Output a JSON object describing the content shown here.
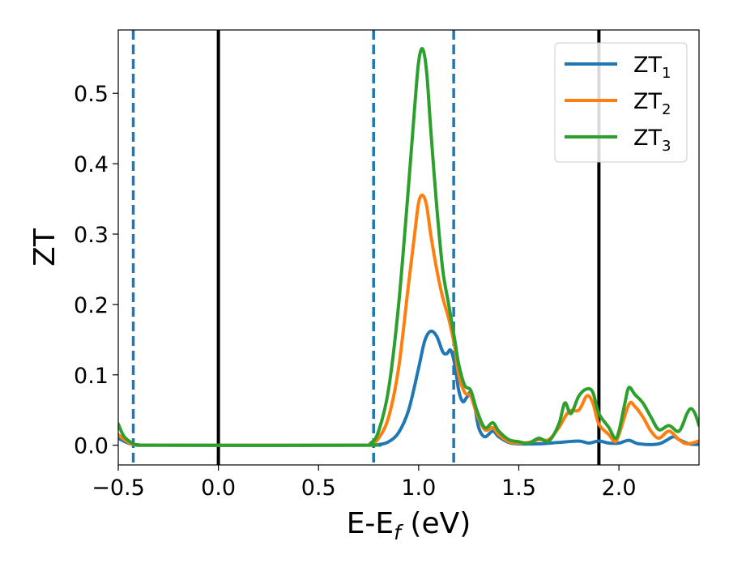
{
  "chart_data": {
    "type": "line",
    "title": "",
    "xlabel": {
      "main": "E-E",
      "sub": "f",
      "suffix": " (eV)"
    },
    "ylabel": "ZT",
    "xlim": [
      -0.5,
      2.4
    ],
    "ylim": [
      -0.028,
      0.59
    ],
    "xticks": [
      -0.5,
      0.0,
      0.5,
      1.0,
      1.5,
      2.0
    ],
    "xtick_labels": [
      "−0.5",
      "0.0",
      "0.5",
      "1.0",
      "1.5",
      "2.0"
    ],
    "yticks": [
      0.0,
      0.1,
      0.2,
      0.3,
      0.4,
      0.5
    ],
    "ytick_labels": [
      "0.0",
      "0.1",
      "0.2",
      "0.3",
      "0.4",
      "0.5"
    ],
    "grid": false,
    "legend_position": "top-right",
    "vlines": [
      {
        "x": 0.0,
        "style": "solid",
        "color": "#000000"
      },
      {
        "x": 1.9,
        "style": "solid",
        "color": "#000000"
      },
      {
        "x": -0.425,
        "style": "dashed",
        "color": "#1f77b4"
      },
      {
        "x": 0.775,
        "style": "dashed",
        "color": "#1f77b4"
      },
      {
        "x": 1.175,
        "style": "dashed",
        "color": "#1f77b4"
      }
    ],
    "series": [
      {
        "name": "ZT",
        "sub": "1",
        "color": "#1f77b4",
        "points": [
          [
            -0.5,
            0.01
          ],
          [
            -0.45,
            0.003
          ],
          [
            -0.4,
            0.0005
          ],
          [
            -0.3,
            0
          ],
          [
            0.7,
            0
          ],
          [
            0.8,
            0.001
          ],
          [
            0.85,
            0.005
          ],
          [
            0.9,
            0.018
          ],
          [
            0.95,
            0.05
          ],
          [
            1.0,
            0.11
          ],
          [
            1.03,
            0.148
          ],
          [
            1.06,
            0.162
          ],
          [
            1.09,
            0.155
          ],
          [
            1.12,
            0.133
          ],
          [
            1.14,
            0.13
          ],
          [
            1.16,
            0.135
          ],
          [
            1.18,
            0.115
          ],
          [
            1.2,
            0.078
          ],
          [
            1.22,
            0.062
          ],
          [
            1.24,
            0.068
          ],
          [
            1.26,
            0.075
          ],
          [
            1.28,
            0.055
          ],
          [
            1.3,
            0.025
          ],
          [
            1.33,
            0.012
          ],
          [
            1.37,
            0.02
          ],
          [
            1.4,
            0.012
          ],
          [
            1.45,
            0.004
          ],
          [
            1.5,
            0.002
          ],
          [
            1.6,
            0.002
          ],
          [
            1.7,
            0.004
          ],
          [
            1.8,
            0.006
          ],
          [
            1.85,
            0.003
          ],
          [
            1.9,
            0.006
          ],
          [
            1.95,
            0.003
          ],
          [
            2.0,
            0.003
          ],
          [
            2.05,
            0.007
          ],
          [
            2.1,
            0.002
          ],
          [
            2.2,
            0.002
          ],
          [
            2.27,
            0.012
          ],
          [
            2.3,
            0.008
          ],
          [
            2.35,
            0.002
          ],
          [
            2.4,
            0.001
          ]
        ]
      },
      {
        "name": "ZT",
        "sub": "2",
        "color": "#ff7f0e",
        "points": [
          [
            -0.5,
            0.015
          ],
          [
            -0.45,
            0.004
          ],
          [
            -0.4,
            0.0005
          ],
          [
            -0.3,
            0
          ],
          [
            0.7,
            0
          ],
          [
            0.76,
            0.002
          ],
          [
            0.8,
            0.01
          ],
          [
            0.85,
            0.04
          ],
          [
            0.9,
            0.11
          ],
          [
            0.95,
            0.23
          ],
          [
            0.98,
            0.3
          ],
          [
            1.0,
            0.345
          ],
          [
            1.02,
            0.355
          ],
          [
            1.04,
            0.34
          ],
          [
            1.06,
            0.3
          ],
          [
            1.09,
            0.25
          ],
          [
            1.12,
            0.21
          ],
          [
            1.15,
            0.18
          ],
          [
            1.18,
            0.14
          ],
          [
            1.2,
            0.1
          ],
          [
            1.23,
            0.075
          ],
          [
            1.26,
            0.07
          ],
          [
            1.29,
            0.045
          ],
          [
            1.33,
            0.022
          ],
          [
            1.37,
            0.025
          ],
          [
            1.4,
            0.015
          ],
          [
            1.45,
            0.005
          ],
          [
            1.5,
            0.003
          ],
          [
            1.55,
            0.004
          ],
          [
            1.6,
            0.008
          ],
          [
            1.65,
            0.008
          ],
          [
            1.7,
            0.025
          ],
          [
            1.75,
            0.048
          ],
          [
            1.8,
            0.05
          ],
          [
            1.84,
            0.07
          ],
          [
            1.87,
            0.06
          ],
          [
            1.9,
            0.03
          ],
          [
            1.95,
            0.015
          ],
          [
            1.98,
            0.005
          ],
          [
            2.0,
            0.015
          ],
          [
            2.05,
            0.058
          ],
          [
            2.08,
            0.055
          ],
          [
            2.12,
            0.04
          ],
          [
            2.16,
            0.02
          ],
          [
            2.2,
            0.01
          ],
          [
            2.25,
            0.02
          ],
          [
            2.3,
            0.008
          ],
          [
            2.34,
            0.002
          ],
          [
            2.4,
            0.006
          ]
        ]
      },
      {
        "name": "ZT",
        "sub": "3",
        "color": "#2ca02c",
        "points": [
          [
            -0.5,
            0.03
          ],
          [
            -0.47,
            0.012
          ],
          [
            -0.43,
            0.003
          ],
          [
            -0.4,
            0.0005
          ],
          [
            -0.3,
            0
          ],
          [
            0.7,
            0
          ],
          [
            0.76,
            0.003
          ],
          [
            0.8,
            0.02
          ],
          [
            0.85,
            0.08
          ],
          [
            0.9,
            0.2
          ],
          [
            0.95,
            0.37
          ],
          [
            0.98,
            0.48
          ],
          [
            1.0,
            0.545
          ],
          [
            1.02,
            0.563
          ],
          [
            1.04,
            0.53
          ],
          [
            1.06,
            0.45
          ],
          [
            1.09,
            0.34
          ],
          [
            1.12,
            0.25
          ],
          [
            1.15,
            0.2
          ],
          [
            1.18,
            0.15
          ],
          [
            1.2,
            0.115
          ],
          [
            1.23,
            0.085
          ],
          [
            1.26,
            0.078
          ],
          [
            1.29,
            0.05
          ],
          [
            1.33,
            0.025
          ],
          [
            1.37,
            0.032
          ],
          [
            1.4,
            0.02
          ],
          [
            1.45,
            0.008
          ],
          [
            1.5,
            0.005
          ],
          [
            1.55,
            0.003
          ],
          [
            1.6,
            0.01
          ],
          [
            1.65,
            0.006
          ],
          [
            1.7,
            0.03
          ],
          [
            1.73,
            0.06
          ],
          [
            1.76,
            0.045
          ],
          [
            1.8,
            0.07
          ],
          [
            1.84,
            0.08
          ],
          [
            1.87,
            0.075
          ],
          [
            1.9,
            0.045
          ],
          [
            1.95,
            0.025
          ],
          [
            1.98,
            0.01
          ],
          [
            2.0,
            0.02
          ],
          [
            2.03,
            0.06
          ],
          [
            2.05,
            0.082
          ],
          [
            2.08,
            0.072
          ],
          [
            2.12,
            0.06
          ],
          [
            2.16,
            0.04
          ],
          [
            2.2,
            0.022
          ],
          [
            2.25,
            0.028
          ],
          [
            2.3,
            0.02
          ],
          [
            2.34,
            0.045
          ],
          [
            2.36,
            0.052
          ],
          [
            2.38,
            0.045
          ],
          [
            2.4,
            0.028
          ]
        ]
      }
    ]
  }
}
